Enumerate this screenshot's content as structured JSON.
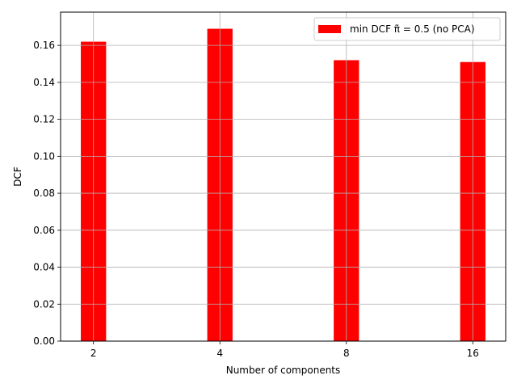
{
  "chart_data": {
    "type": "bar",
    "categories": [
      "2",
      "4",
      "8",
      "16"
    ],
    "series": [
      {
        "name": "min DCF π̃ = 0.5 (no PCA)",
        "values": [
          0.162,
          0.169,
          0.152,
          0.151
        ],
        "color": "#ff0000"
      }
    ],
    "title": "",
    "xlabel": "Number of components",
    "ylabel": "DCF",
    "ylim": [
      0,
      0.178
    ],
    "yticks": [
      0.0,
      0.02,
      0.04,
      0.06,
      0.08,
      0.1,
      0.12,
      0.14,
      0.16
    ],
    "ytick_labels": [
      "0.00",
      "0.02",
      "0.04",
      "0.06",
      "0.08",
      "0.10",
      "0.12",
      "0.14",
      "0.16"
    ],
    "grid": true,
    "legend_position": "top-right"
  }
}
